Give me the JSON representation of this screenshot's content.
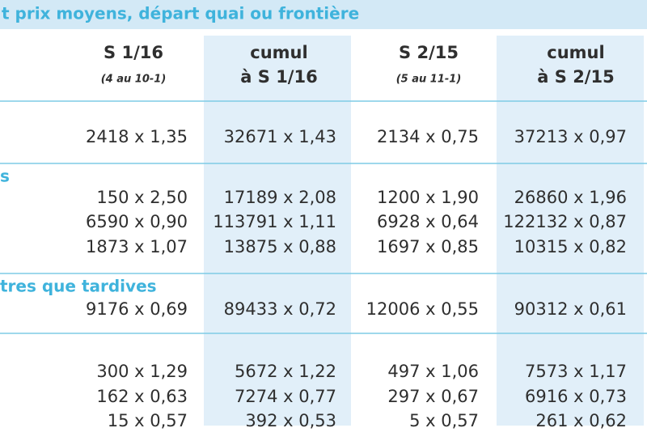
{
  "header": {
    "title": "t prix moyens, départ quai ou frontière"
  },
  "columns": [
    {
      "title": "S 1/16",
      "subtitle": "(4 au 10-1)"
    },
    {
      "title": "cumul",
      "subtitle": "à S 1/16"
    },
    {
      "title": "S 2/15",
      "subtitle": "(5 au 11-1)"
    },
    {
      "title": "cumul",
      "subtitle": "à S 2/15"
    }
  ],
  "sections": [
    {
      "rows": [
        [
          "2418 x 1,35",
          "32671 x 1,43",
          "2134 x 0,75",
          "37213 x 0,97"
        ]
      ]
    },
    {
      "label": "s",
      "rows": [
        [
          "150 x 2,50",
          "17189 x 2,08",
          "1200 x 1,90",
          "26860 x 1,96"
        ],
        [
          "6590 x 0,90",
          "113791 x 1,11",
          "6928 x 0,64",
          "122132 x 0,87"
        ],
        [
          "1873 x 1,07",
          "13875 x 0,88",
          "1697 x 0,85",
          "10315 x 0,82"
        ]
      ]
    },
    {
      "label": "tres que tardives",
      "rows": [
        [
          "9176 x 0,69",
          "89433 x 0,72",
          "12006 x 0,55",
          "90312 x 0,61"
        ]
      ]
    },
    {
      "rows": [
        [
          "300 x 1,29",
          "5672 x 1,22",
          "497 x 1,06",
          "7573 x 1,17"
        ],
        [
          "162 x 0,63",
          "7274 x 0,77",
          "297 x 0,67",
          "6916 x 0,73"
        ],
        [
          "15 x 0,57",
          "392 x 0,53",
          "5 x 0,57",
          "261 x 0,62"
        ]
      ]
    }
  ]
}
